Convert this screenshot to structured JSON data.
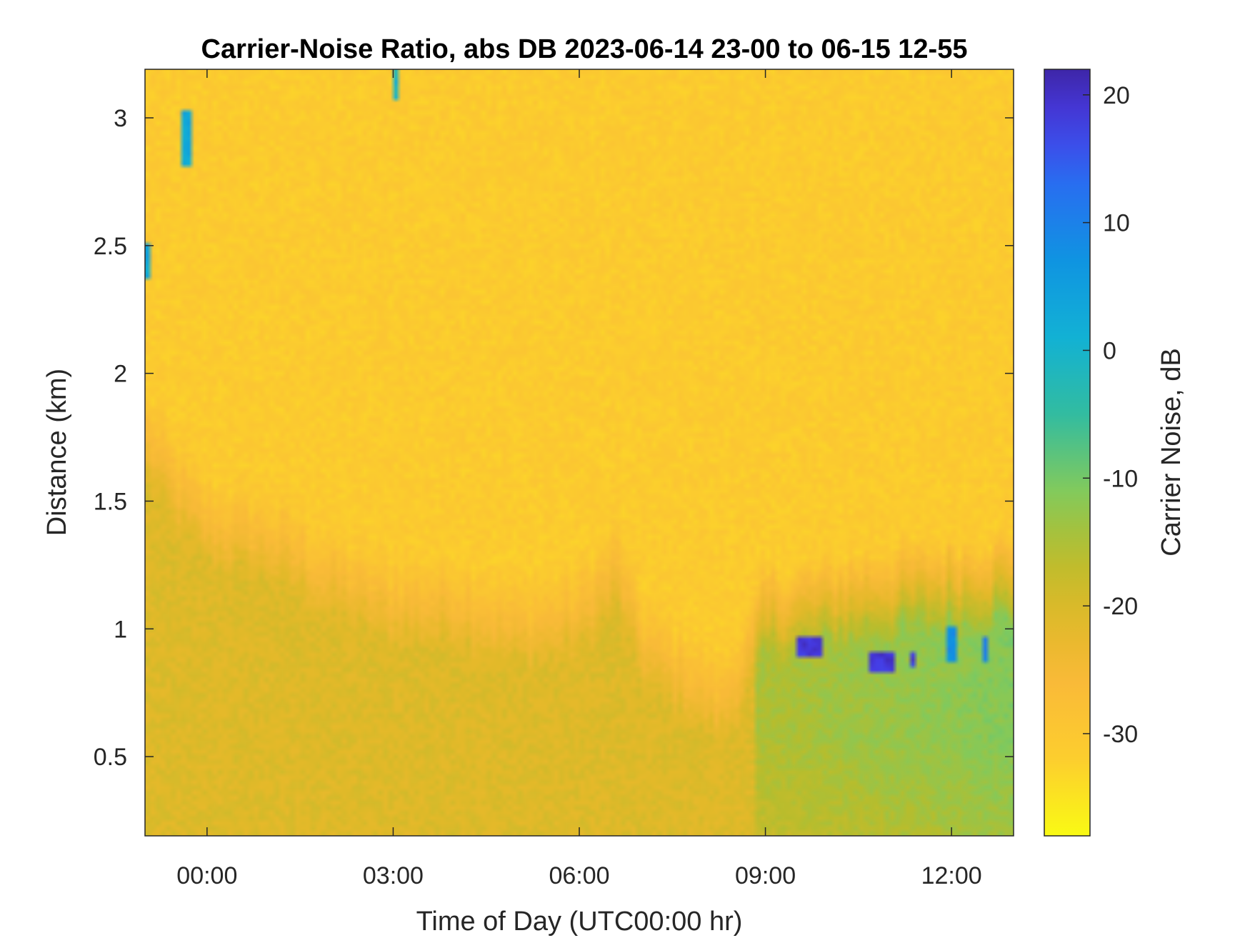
{
  "chart_data": {
    "type": "heatmap",
    "title": "Carrier-Noise Ratio, abs DB 2023-06-14 23-00 to 06-15 12-55",
    "xlabel": "Time of Day (UTC00:00 hr)",
    "ylabel": "Distance (km)",
    "colorbar_label": "Carrier Noise, dB",
    "xlim_hours": [
      -1.0,
      13.0
    ],
    "ylim_km": [
      0.19,
      3.19
    ],
    "clim_db": [
      -38,
      22
    ],
    "colormap": "parula (reversed: yellow = low, dark blue = high)",
    "x_ticks": [
      {
        "hours": 0,
        "label": "00:00"
      },
      {
        "hours": 3,
        "label": "03:00"
      },
      {
        "hours": 6,
        "label": "06:00"
      },
      {
        "hours": 9,
        "label": "09:00"
      },
      {
        "hours": 12,
        "label": "12:00"
      }
    ],
    "y_ticks": [
      {
        "value": 0.5,
        "label": "0.5"
      },
      {
        "value": 1.0,
        "label": "1"
      },
      {
        "value": 1.5,
        "label": "1.5"
      },
      {
        "value": 2.0,
        "label": "2"
      },
      {
        "value": 2.5,
        "label": "2.5"
      },
      {
        "value": 3.0,
        "label": "3"
      }
    ],
    "colorbar_ticks": [
      {
        "value": 20,
        "label": "20"
      },
      {
        "value": 10,
        "label": "10"
      },
      {
        "value": 0,
        "label": "0"
      },
      {
        "value": -10,
        "label": "-10"
      },
      {
        "value": -20,
        "label": "-20"
      },
      {
        "value": -30,
        "label": "-30"
      }
    ],
    "background_db": -31,
    "boundary_layer_top_km": [
      [
        -1.0,
        1.6
      ],
      [
        -0.5,
        1.4
      ],
      [
        0.0,
        1.25
      ],
      [
        1.0,
        1.2
      ],
      [
        2.0,
        1.05
      ],
      [
        3.0,
        0.95
      ],
      [
        4.0,
        0.95
      ],
      [
        5.0,
        0.85
      ],
      [
        6.0,
        0.9
      ],
      [
        6.6,
        1.1
      ],
      [
        7.0,
        0.8
      ],
      [
        8.0,
        0.6
      ],
      [
        8.3,
        0.55
      ],
      [
        9.0,
        0.88
      ],
      [
        10.0,
        0.93
      ],
      [
        11.0,
        0.97
      ],
      [
        12.0,
        1.0
      ],
      [
        13.0,
        1.02
      ]
    ],
    "features": [
      {
        "x_hours": [
          -0.4,
          -0.25
        ],
        "y_km": [
          2.82,
          3.03
        ],
        "db": 3
      },
      {
        "x_hours": [
          -1.0,
          -0.93
        ],
        "y_km": [
          2.37,
          2.5
        ],
        "db": 3
      },
      {
        "x_hours": [
          3.0,
          3.07
        ],
        "y_km": [
          3.07,
          3.19
        ],
        "db": 0
      },
      {
        "x_hours": [
          9.5,
          9.95
        ],
        "y_km": [
          0.88,
          0.96
        ],
        "db": 19
      },
      {
        "x_hours": [
          10.7,
          11.1
        ],
        "y_km": [
          0.83,
          0.91
        ],
        "db": 19
      },
      {
        "x_hours": [
          11.3,
          11.4
        ],
        "y_km": [
          0.85,
          0.9
        ],
        "db": 18
      },
      {
        "x_hours": [
          11.95,
          12.1
        ],
        "y_km": [
          0.86,
          1.0
        ],
        "db": 8
      },
      {
        "x_hours": [
          12.5,
          12.58
        ],
        "y_km": [
          0.86,
          0.97
        ],
        "db": 10
      }
    ]
  }
}
